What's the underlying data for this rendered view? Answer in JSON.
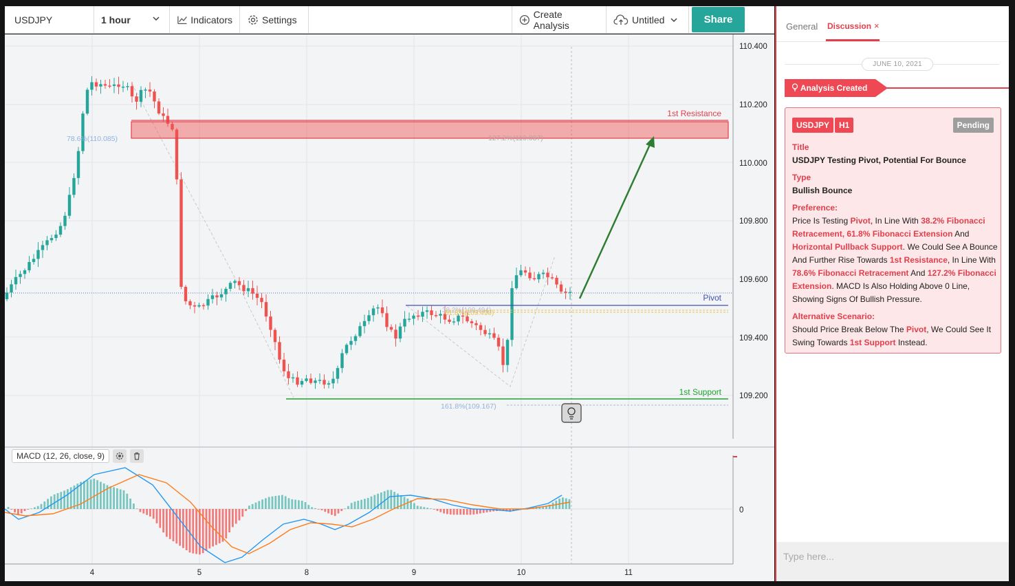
{
  "toolbar": {
    "symbol": "USDJPY",
    "interval": "1 hour",
    "indicators_label": "Indicators",
    "settings_label": "Settings",
    "create_label": "Create Analysis",
    "untitled_label": "Untitled",
    "share_label": "Share"
  },
  "chart": {
    "price_axis": [
      "110.400",
      "110.200",
      "110.000",
      "109.800",
      "109.600",
      "109.400",
      "109.200"
    ],
    "time_axis": [
      "4",
      "5",
      "8",
      "9",
      "10",
      "11"
    ],
    "macd_axis_zero": "0",
    "zones": {
      "resistance_label": "1st Resistance",
      "pivot_label": "Pivot",
      "support_label": "1st Support"
    },
    "fib_labels": {
      "fib_786": "78.6%(110.085)",
      "fib_1272": "127.2%(110.087)",
      "fib_1618": "161.8%(109.167)",
      "fib_382": "38.2%(109.494)",
      "fib_618": "61.8%(109.490)"
    },
    "macd_label": "MACD (12, 26, close, 9)",
    "colors": {
      "bull": "#26a69a",
      "bear": "#ef5350",
      "resistance": "#e23f4b",
      "pivot": "#3f51b5",
      "support": "#1aa32a",
      "arrow": "#2e7d32",
      "macd_line": "#2196f3",
      "signal_line": "#ff7b1a"
    }
  },
  "sidebar": {
    "tab_general": "General",
    "tab_discussion": "Discussion",
    "tab_close": "×",
    "date": "JUNE 10, 2021",
    "created": "Analysis Created",
    "card": {
      "symbol": "USDJPY",
      "timeframe": "H1",
      "status": "Pending",
      "title_label": "Title",
      "title": "USDJPY Testing Pivot, Potential For Bounce",
      "type_label": "Type",
      "type": "Bullish Bounce",
      "preference_label": "Preference:",
      "preference_parts": [
        "Price Is Testing ",
        "Pivot",
        ", In Line With ",
        "38.2% Fibonacci Retracement, 61.8% Fibonacci Extension",
        " And ",
        "Horizontal Pullback Support",
        ". We Could See A Bounce And Further Rise Towards ",
        "1st Resistance",
        ", In Line With ",
        "78.6% Fibonacci Retracement",
        " And ",
        "127.2% Fibonacci Extension",
        ". MACD Is Also Holding Above 0 Line, Showing Signs Of Bullish Pressure."
      ],
      "alt_label": "Alternative Scenario:",
      "alt_parts": [
        "Should Price Break Below The ",
        "Pivot",
        ", We Could See It Swing Towards ",
        "1st Support",
        " Instead."
      ]
    },
    "input_placeholder": "Type here..."
  }
}
